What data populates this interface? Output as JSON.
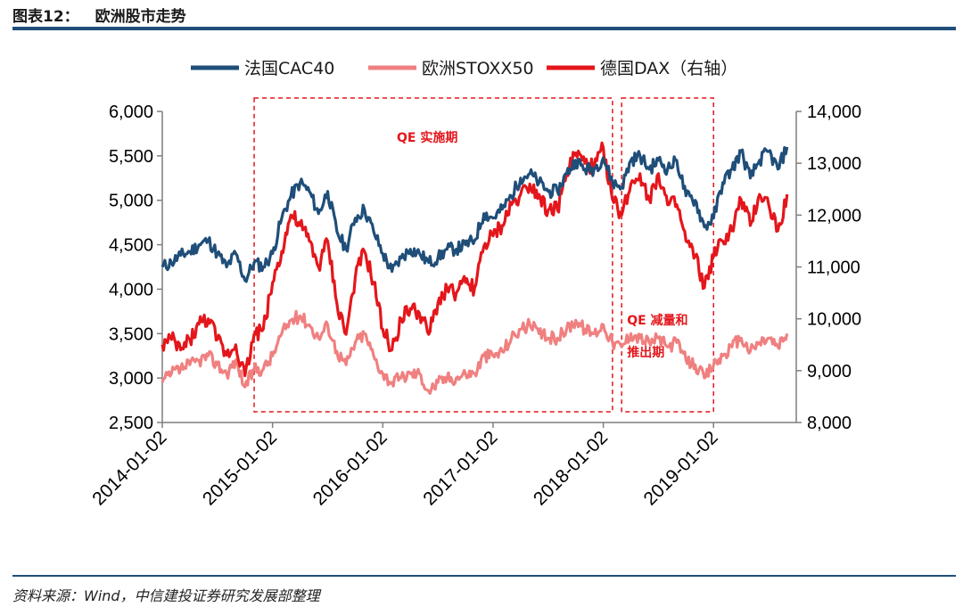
{
  "header": {
    "figure_label": "图表12：",
    "title": "欧洲股市走势"
  },
  "footer": {
    "source": "资料来源：Wind，中信建投证券研究发展部整理"
  },
  "chart_data": {
    "type": "line",
    "legend": [
      {
        "name": "法国CAC40",
        "color": "#1f4e79"
      },
      {
        "name": "欧洲STOXX50",
        "color": "#f08080"
      },
      {
        "name": "德国DAX（右轴）",
        "color": "#e4161b"
      }
    ],
    "x_ticks": [
      "2014-01-02",
      "2015-01-02",
      "2016-01-02",
      "2017-01-02",
      "2018-01-02",
      "2019-01-02"
    ],
    "y_left": {
      "min": 2500,
      "max": 6000,
      "ticks": [
        "6,000",
        "5,500",
        "5,000",
        "4,500",
        "4,000",
        "3,500",
        "3,000",
        "2,500"
      ]
    },
    "y_right": {
      "min": 8000,
      "max": 14000,
      "ticks": [
        "14,000",
        "13,000",
        "12,000",
        "11,000",
        "10,000",
        "9,000",
        "8,000"
      ]
    },
    "annotations": [
      {
        "label": "QE 实施期",
        "from": "2014-11",
        "to": "2018-02"
      },
      {
        "label_line1": "QE 减量和",
        "label_line2": "推出期",
        "from": "2018-03",
        "to": "2019-01"
      }
    ],
    "series": [
      {
        "name": "法国CAC40",
        "axis": "left",
        "color": "#1f4e79",
        "points": [
          [
            "2014-01",
            4250
          ],
          [
            "2014-02",
            4300
          ],
          [
            "2014-03",
            4380
          ],
          [
            "2014-04",
            4420
          ],
          [
            "2014-05",
            4500
          ],
          [
            "2014-06",
            4550
          ],
          [
            "2014-07",
            4400
          ],
          [
            "2014-08",
            4250
          ],
          [
            "2014-09",
            4400
          ],
          [
            "2014-10",
            4100
          ],
          [
            "2014-11",
            4300
          ],
          [
            "2014-12",
            4250
          ],
          [
            "2015-01",
            4400
          ],
          [
            "2015-02",
            4800
          ],
          [
            "2015-03",
            5050
          ],
          [
            "2015-04",
            5200
          ],
          [
            "2015-05",
            5100
          ],
          [
            "2015-06",
            4850
          ],
          [
            "2015-07",
            5100
          ],
          [
            "2015-08",
            4650
          ],
          [
            "2015-09",
            4450
          ],
          [
            "2015-10",
            4800
          ],
          [
            "2015-11",
            4900
          ],
          [
            "2015-12",
            4650
          ],
          [
            "2016-01",
            4400
          ],
          [
            "2016-02",
            4200
          ],
          [
            "2016-03",
            4350
          ],
          [
            "2016-04",
            4450
          ],
          [
            "2016-05",
            4400
          ],
          [
            "2016-06",
            4300
          ],
          [
            "2016-07",
            4350
          ],
          [
            "2016-08",
            4450
          ],
          [
            "2016-09",
            4450
          ],
          [
            "2016-10",
            4500
          ],
          [
            "2016-11",
            4550
          ],
          [
            "2016-12",
            4850
          ],
          [
            "2017-01",
            4800
          ],
          [
            "2017-02",
            4900
          ],
          [
            "2017-03",
            5050
          ],
          [
            "2017-04",
            5250
          ],
          [
            "2017-05",
            5300
          ],
          [
            "2017-06",
            5200
          ],
          [
            "2017-07",
            5100
          ],
          [
            "2017-08",
            5100
          ],
          [
            "2017-09",
            5300
          ],
          [
            "2017-10",
            5450
          ],
          [
            "2017-11",
            5350
          ],
          [
            "2017-12",
            5350
          ],
          [
            "2018-01",
            5480
          ],
          [
            "2018-02",
            5200
          ],
          [
            "2018-03",
            5150
          ],
          [
            "2018-04",
            5450
          ],
          [
            "2018-05",
            5500
          ],
          [
            "2018-06",
            5350
          ],
          [
            "2018-07",
            5450
          ],
          [
            "2018-08",
            5350
          ],
          [
            "2018-09",
            5450
          ],
          [
            "2018-10",
            5050
          ],
          [
            "2018-11",
            5000
          ],
          [
            "2018-12",
            4700
          ],
          [
            "2019-01",
            4800
          ],
          [
            "2019-02",
            5200
          ],
          [
            "2019-03",
            5350
          ],
          [
            "2019-04",
            5550
          ],
          [
            "2019-05",
            5250
          ],
          [
            "2019-06",
            5450
          ],
          [
            "2019-07",
            5550
          ],
          [
            "2019-08",
            5350
          ],
          [
            "2019-09",
            5600
          ]
        ]
      },
      {
        "name": "欧洲STOXX50",
        "axis": "left",
        "color": "#f08080",
        "points": [
          [
            "2014-01",
            2950
          ],
          [
            "2014-02",
            3050
          ],
          [
            "2014-03",
            3100
          ],
          [
            "2014-04",
            3150
          ],
          [
            "2014-05",
            3200
          ],
          [
            "2014-06",
            3250
          ],
          [
            "2014-07",
            3150
          ],
          [
            "2014-08",
            3050
          ],
          [
            "2014-09",
            3200
          ],
          [
            "2014-10",
            2900
          ],
          [
            "2014-11",
            3100
          ],
          [
            "2014-12",
            3100
          ],
          [
            "2015-01",
            3250
          ],
          [
            "2015-02",
            3500
          ],
          [
            "2015-03",
            3650
          ],
          [
            "2015-04",
            3700
          ],
          [
            "2015-05",
            3600
          ],
          [
            "2015-06",
            3450
          ],
          [
            "2015-07",
            3600
          ],
          [
            "2015-08",
            3300
          ],
          [
            "2015-09",
            3150
          ],
          [
            "2015-10",
            3400
          ],
          [
            "2015-11",
            3500
          ],
          [
            "2015-12",
            3250
          ],
          [
            "2016-01",
            3050
          ],
          [
            "2016-02",
            2950
          ],
          [
            "2016-03",
            3000
          ],
          [
            "2016-04",
            3050
          ],
          [
            "2016-05",
            3050
          ],
          [
            "2016-06",
            2850
          ],
          [
            "2016-07",
            2950
          ],
          [
            "2016-08",
            3000
          ],
          [
            "2016-09",
            3000
          ],
          [
            "2016-10",
            3050
          ],
          [
            "2016-11",
            3050
          ],
          [
            "2016-12",
            3250
          ],
          [
            "2017-01",
            3250
          ],
          [
            "2017-02",
            3300
          ],
          [
            "2017-03",
            3450
          ],
          [
            "2017-04",
            3550
          ],
          [
            "2017-05",
            3600
          ],
          [
            "2017-06",
            3500
          ],
          [
            "2017-07",
            3450
          ],
          [
            "2017-08",
            3450
          ],
          [
            "2017-09",
            3550
          ],
          [
            "2017-10",
            3650
          ],
          [
            "2017-11",
            3550
          ],
          [
            "2017-12",
            3500
          ],
          [
            "2018-01",
            3600
          ],
          [
            "2018-02",
            3400
          ],
          [
            "2018-03",
            3350
          ],
          [
            "2018-04",
            3500
          ],
          [
            "2018-05",
            3450
          ],
          [
            "2018-06",
            3400
          ],
          [
            "2018-07",
            3450
          ],
          [
            "2018-08",
            3350
          ],
          [
            "2018-09",
            3400
          ],
          [
            "2018-10",
            3200
          ],
          [
            "2018-11",
            3150
          ],
          [
            "2018-12",
            3000
          ],
          [
            "2019-01",
            3150
          ],
          [
            "2019-02",
            3250
          ],
          [
            "2019-03",
            3350
          ],
          [
            "2019-04",
            3450
          ],
          [
            "2019-05",
            3300
          ],
          [
            "2019-06",
            3400
          ],
          [
            "2019-07",
            3450
          ],
          [
            "2019-08",
            3350
          ],
          [
            "2019-09",
            3500
          ]
        ]
      },
      {
        "name": "德国DAX（右轴）",
        "axis": "right",
        "color": "#e4161b",
        "points": [
          [
            "2014-01",
            9500
          ],
          [
            "2014-02",
            9600
          ],
          [
            "2014-03",
            9400
          ],
          [
            "2014-04",
            9600
          ],
          [
            "2014-05",
            9900
          ],
          [
            "2014-06",
            10000
          ],
          [
            "2014-07",
            9600
          ],
          [
            "2014-08",
            9300
          ],
          [
            "2014-09",
            9500
          ],
          [
            "2014-10",
            8900
          ],
          [
            "2014-11",
            9700
          ],
          [
            "2014-12",
            9800
          ],
          [
            "2015-01",
            10700
          ],
          [
            "2015-02",
            11300
          ],
          [
            "2015-03",
            12000
          ],
          [
            "2015-04",
            11800
          ],
          [
            "2015-05",
            11500
          ],
          [
            "2015-06",
            11000
          ],
          [
            "2015-07",
            11500
          ],
          [
            "2015-08",
            10300
          ],
          [
            "2015-09",
            9700
          ],
          [
            "2015-10",
            10800
          ],
          [
            "2015-11",
            11300
          ],
          [
            "2015-12",
            10700
          ],
          [
            "2016-01",
            9800
          ],
          [
            "2016-02",
            9400
          ],
          [
            "2016-03",
            10000
          ],
          [
            "2016-04",
            10200
          ],
          [
            "2016-05",
            10100
          ],
          [
            "2016-06",
            9700
          ],
          [
            "2016-07",
            10300
          ],
          [
            "2016-08",
            10600
          ],
          [
            "2016-09",
            10500
          ],
          [
            "2016-10",
            10700
          ],
          [
            "2016-11",
            10600
          ],
          [
            "2016-12",
            11400
          ],
          [
            "2017-01",
            11600
          ],
          [
            "2017-02",
            11800
          ],
          [
            "2017-03",
            12200
          ],
          [
            "2017-04",
            12400
          ],
          [
            "2017-05",
            12600
          ],
          [
            "2017-06",
            12400
          ],
          [
            "2017-07",
            12100
          ],
          [
            "2017-08",
            12100
          ],
          [
            "2017-09",
            12800
          ],
          [
            "2017-10",
            13200
          ],
          [
            "2017-11",
            13000
          ],
          [
            "2017-12",
            12900
          ],
          [
            "2018-01",
            13300
          ],
          [
            "2018-02",
            12300
          ],
          [
            "2018-03",
            12000
          ],
          [
            "2018-04",
            12600
          ],
          [
            "2018-05",
            12800
          ],
          [
            "2018-06",
            12300
          ],
          [
            "2018-07",
            12800
          ],
          [
            "2018-08",
            12200
          ],
          [
            "2018-09",
            12200
          ],
          [
            "2018-10",
            11500
          ],
          [
            "2018-11",
            11200
          ],
          [
            "2018-12",
            10600
          ],
          [
            "2019-01",
            11200
          ],
          [
            "2019-02",
            11500
          ],
          [
            "2019-03",
            11700
          ],
          [
            "2019-04",
            12300
          ],
          [
            "2019-05",
            11800
          ],
          [
            "2019-06",
            12400
          ],
          [
            "2019-07",
            12200
          ],
          [
            "2019-08",
            11700
          ],
          [
            "2019-09",
            12400
          ]
        ]
      }
    ]
  }
}
